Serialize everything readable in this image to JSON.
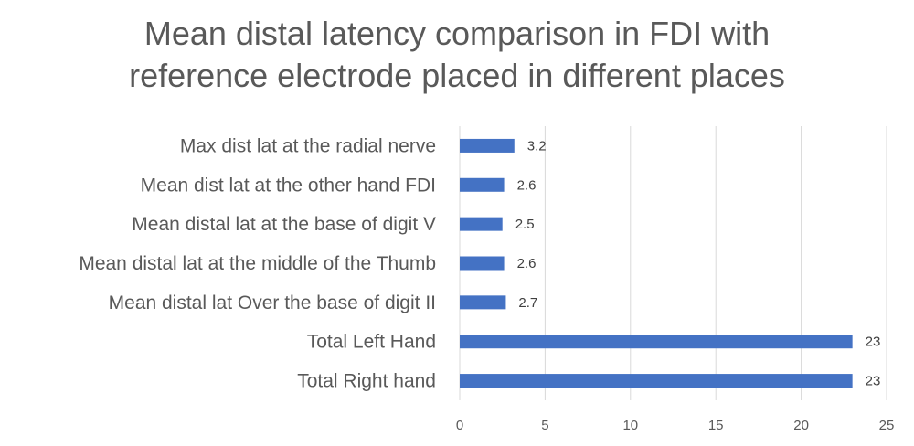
{
  "chart_data": {
    "type": "bar",
    "orientation": "horizontal",
    "title_lines": [
      "Mean distal latency comparison in FDI with",
      "reference electrode placed in different places"
    ],
    "categories": [
      "Max dist lat at the radial nerve",
      "Mean dist lat at the other hand FDI",
      "Mean distal lat at the base of digit V",
      "Mean distal lat at the middle of the Thumb",
      "Mean distal lat Over the base of digit II",
      "Total Left Hand",
      "Total Right hand"
    ],
    "values": [
      3.2,
      2.6,
      2.5,
      2.6,
      2.7,
      23,
      23
    ],
    "data_labels": [
      "3.2",
      "2.6",
      "2.5",
      "2.6",
      "2.7",
      "23",
      "23"
    ],
    "xlim": [
      0,
      25
    ],
    "xticks": [
      0,
      5,
      10,
      15,
      20,
      25
    ],
    "xtick_labels": [
      "0",
      "5",
      "10",
      "15",
      "20",
      "25"
    ],
    "grid": "vertical",
    "legend": "none",
    "bar_color": "#4472C4",
    "grid_color": "#D9D9D9"
  }
}
